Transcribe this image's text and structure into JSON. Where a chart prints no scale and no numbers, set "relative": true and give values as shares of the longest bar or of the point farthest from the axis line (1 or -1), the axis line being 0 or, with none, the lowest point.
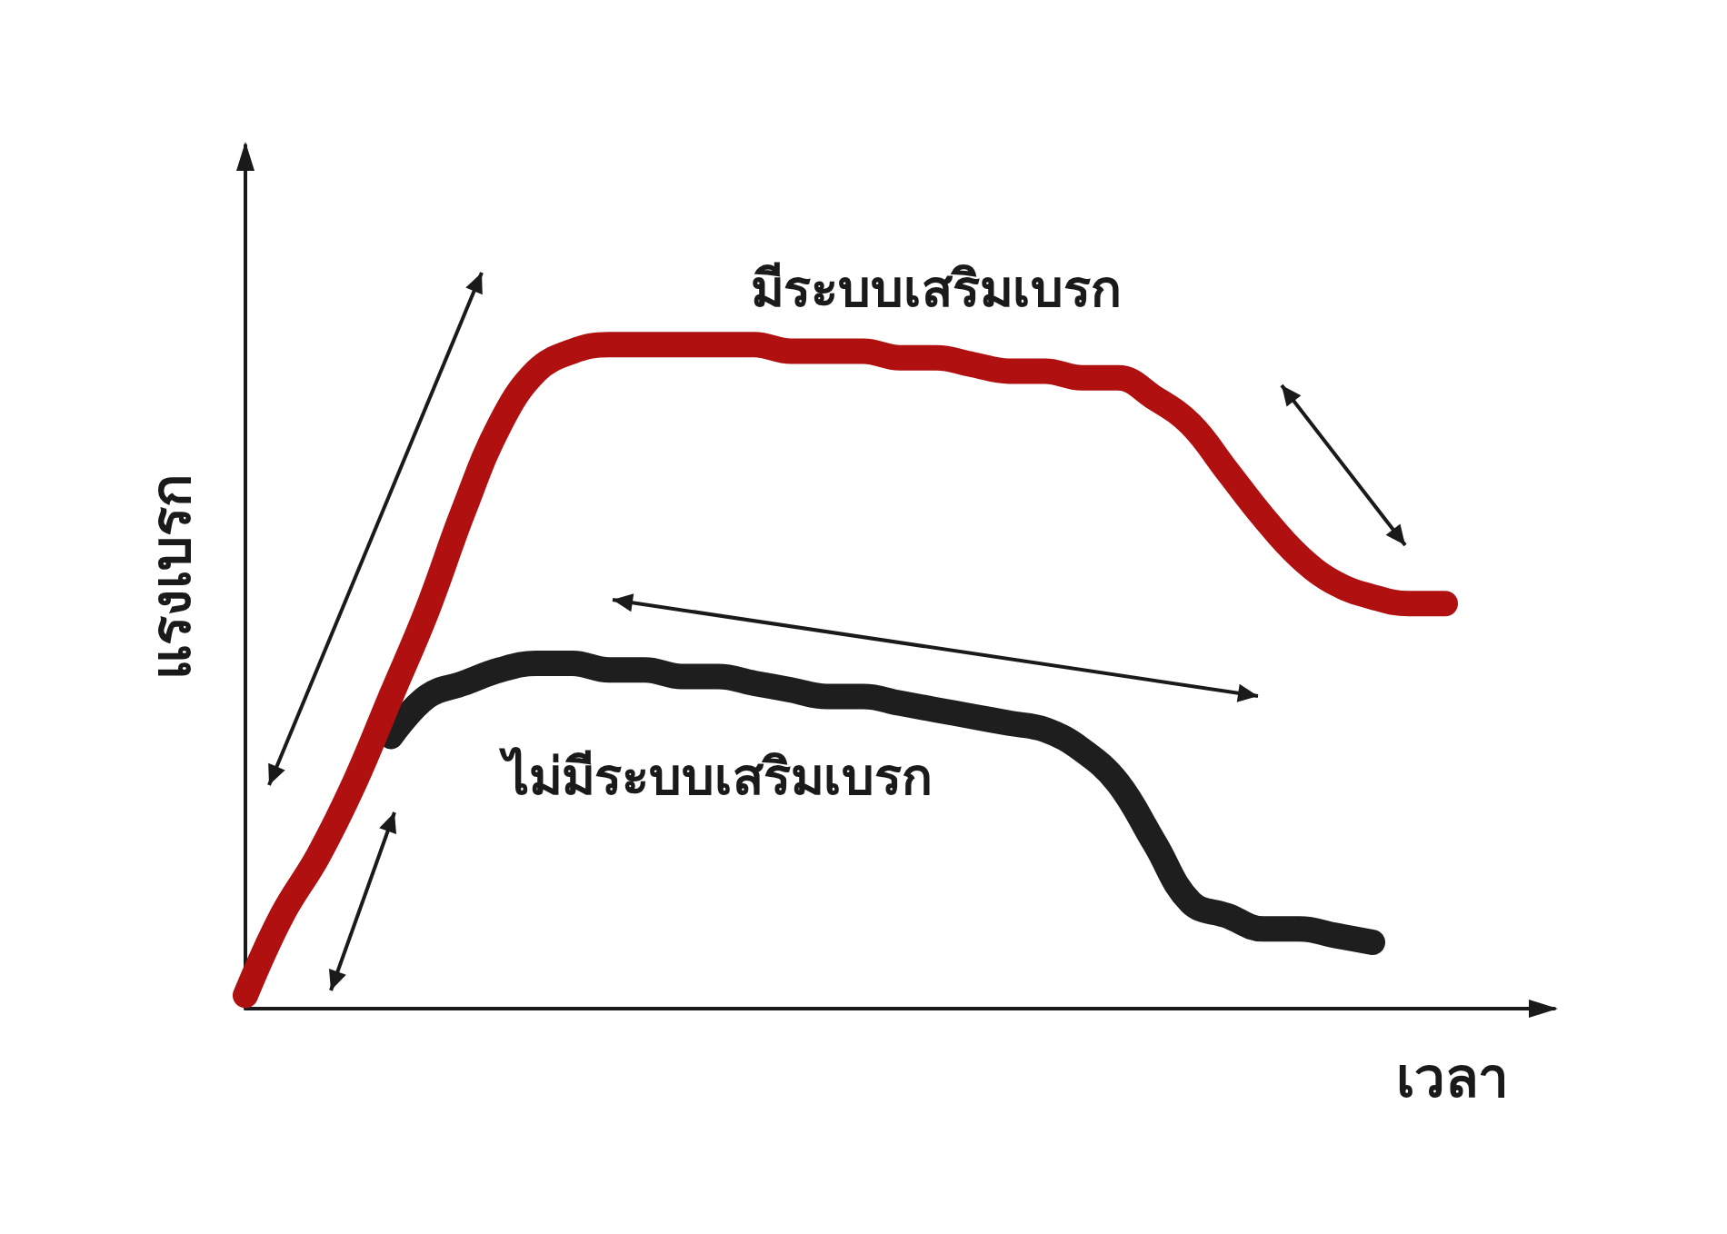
{
  "chart_data": {
    "type": "line",
    "relative": true,
    "xlabel": "เวลา",
    "ylabel": "แรงเบรก",
    "categories": [
      null,
      null,
      null,
      null,
      null,
      null,
      null,
      null,
      null,
      null,
      null,
      null,
      null,
      null,
      null,
      null,
      null,
      null,
      null,
      null,
      null,
      null,
      null,
      null,
      null,
      null,
      null,
      null,
      null,
      null,
      null,
      null,
      null,
      null,
      null,
      null,
      null
    ],
    "series": [
      {
        "name": "มีระบบเสริมเบรก",
        "color": "#b01010",
        "values": [
          0.02,
          0.14,
          0.23,
          0.34,
          0.47,
          0.6,
          0.75,
          0.88,
          0.96,
          0.99,
          1.0,
          1,
          1,
          1,
          1.0,
          0.99,
          0.99,
          0.99,
          0.98,
          0.98,
          0.97,
          0.96,
          0.96,
          0.95,
          0.95,
          0.92,
          0.88,
          0.81,
          0.74,
          0.68,
          0.64,
          0.62,
          0.61,
          0.61,
          null,
          null,
          null
        ]
      },
      {
        "name": "ไม่มีระบบเสริมเบรก",
        "color": "#1e1e1e",
        "values": [
          null,
          null,
          null,
          null,
          0.41,
          0.47,
          0.49,
          0.51,
          0.52,
          0.52,
          0.51,
          0.51,
          0.5,
          0.5,
          0.49,
          0.48,
          0.47,
          0.47,
          0.46,
          0.45,
          0.44,
          0.43,
          0.42,
          0.39,
          0.34,
          0.25,
          0.16,
          0.14,
          0.12,
          0.12,
          0.11,
          0.1,
          null,
          null,
          null,
          null,
          null
        ]
      }
    ],
    "line_style": "solid"
  }
}
